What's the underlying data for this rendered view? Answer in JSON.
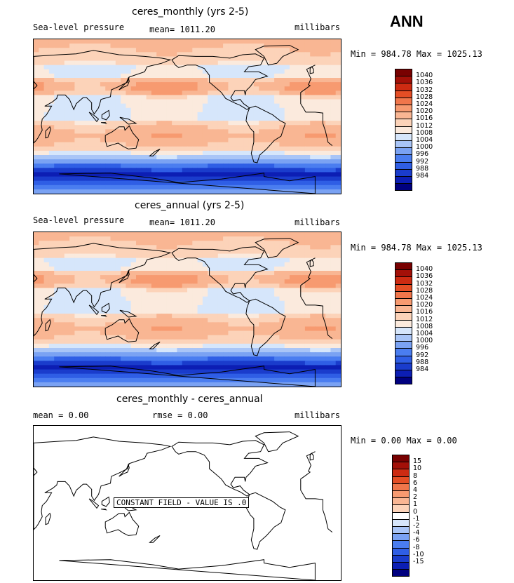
{
  "season": "ANN",
  "palettes": {
    "pos": [
      "#00007f",
      "#0c1eb4",
      "#1a3ccc",
      "#2f5ee5",
      "#4a7df0",
      "#7aa2f3",
      "#a9c5f7",
      "#d6e6fb",
      "#fbeadd",
      "#fcd3b9",
      "#f9b693",
      "#f79a70",
      "#f0764b",
      "#e54e25",
      "#cd2b12",
      "#a31008",
      "#780101"
    ],
    "diff": [
      "#00007f",
      "#0c1eb4",
      "#1a3ccc",
      "#2f5ee5",
      "#4a7df0",
      "#7aa2f3",
      "#a9c5f7",
      "#d6e6fb",
      "#ffffff",
      "#fcd3b9",
      "#f9b693",
      "#f79a70",
      "#f0764b",
      "#e54e25",
      "#cd2b12",
      "#a31008",
      "#780101"
    ]
  },
  "chart_data": [
    {
      "type": "heatmap",
      "title": "ceres_monthly (yrs 2-5)",
      "variable": "Sea-level pressure",
      "mean_label": "mean= 1011.20",
      "units": "millibars",
      "min_max": "Min = 984.78 Max = 1025.13",
      "min": 984.78,
      "max": 1025.13,
      "mean": 1011.2,
      "levels": [
        "1040",
        "1036",
        "1032",
        "1028",
        "1024",
        "1020",
        "1016",
        "1012",
        "1008",
        "1004",
        "1000",
        "996",
        "992",
        "988",
        "984"
      ],
      "field": "slp"
    },
    {
      "type": "heatmap",
      "title": "ceres_annual (yrs 2-5)",
      "variable": "Sea-level pressure",
      "mean_label": "mean= 1011.20",
      "units": "millibars",
      "min_max": "Min = 984.78 Max = 1025.13",
      "min": 984.78,
      "max": 1025.13,
      "mean": 1011.2,
      "levels": [
        "1040",
        "1036",
        "1032",
        "1028",
        "1024",
        "1020",
        "1016",
        "1012",
        "1008",
        "1004",
        "1000",
        "996",
        "992",
        "988",
        "984"
      ],
      "field": "slp"
    },
    {
      "type": "heatmap",
      "title": "ceres_monthly - ceres_annual",
      "mean_label": "mean =    0.00",
      "rmse_label": "rmse =    0.00",
      "units": "millibars",
      "min_max": "Min =   0.00 Max =   0.00",
      "min": 0.0,
      "max": 0.0,
      "mean": 0.0,
      "rmse": 0.0,
      "levels": [
        "15",
        "10",
        "8",
        "6",
        "4",
        "2",
        "1",
        "0",
        "-1",
        "-2",
        "-4",
        "-6",
        "-8",
        "-10",
        "-15"
      ],
      "field": "constant",
      "annotation": "CONSTANT FIELD - VALUE IS .0"
    }
  ]
}
